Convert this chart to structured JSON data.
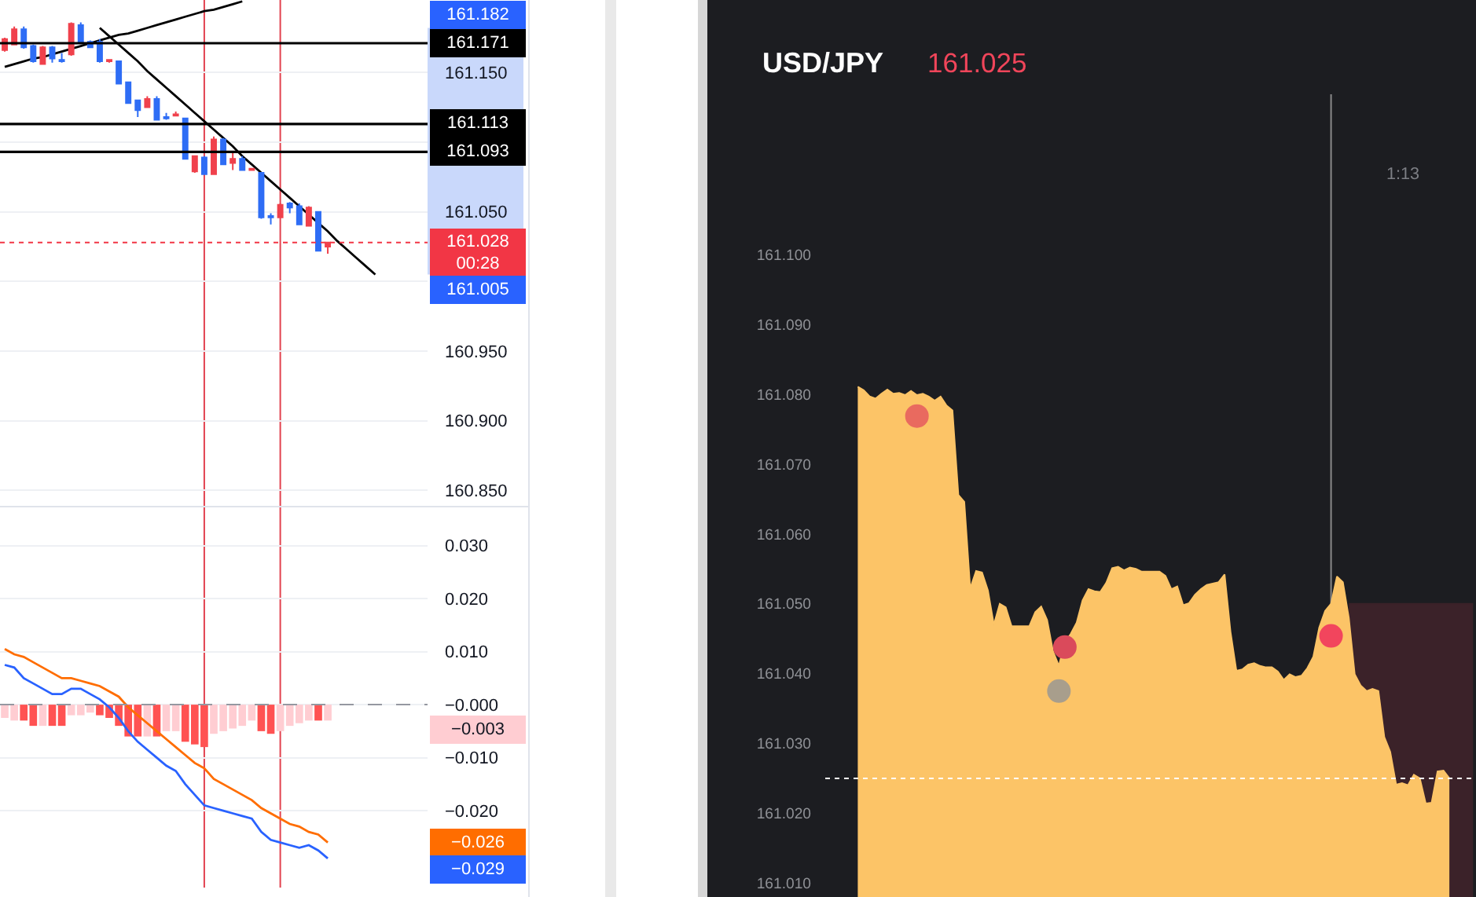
{
  "chart_data": [
    {
      "type": "candlestick",
      "categories": [
        null,
        null,
        null,
        null,
        null,
        null,
        null,
        null,
        null,
        null,
        null,
        null,
        null,
        null,
        null,
        null,
        null,
        null,
        null,
        null,
        null,
        null,
        null,
        null,
        null,
        null,
        null,
        null,
        null,
        null,
        null,
        null,
        null,
        null,
        null,
        null,
        null,
        null,
        null,
        null,
        null,
        null,
        null,
        null,
        null
      ],
      "ohlc": [
        [
          161.166,
          161.175,
          161.165,
          161.174
        ],
        [
          161.17,
          161.183,
          161.17,
          161.181
        ],
        [
          161.181,
          161.183,
          161.167,
          161.168
        ],
        [
          161.169,
          161.17,
          161.157,
          161.158
        ],
        [
          161.156,
          161.169,
          161.156,
          161.168
        ],
        [
          161.168,
          161.169,
          161.157,
          161.16
        ],
        [
          161.159,
          161.164,
          161.157,
          161.158
        ],
        [
          161.163,
          161.186,
          161.162,
          161.185
        ],
        [
          161.184,
          161.186,
          161.172,
          161.172
        ],
        [
          161.172,
          161.173,
          161.168,
          161.168
        ],
        [
          161.172,
          161.174,
          161.157,
          161.158
        ],
        [
          161.158,
          161.159,
          161.157,
          161.159
        ],
        [
          161.158,
          161.158,
          161.142,
          161.142
        ],
        [
          161.143,
          161.143,
          161.128,
          161.128
        ],
        [
          161.13,
          161.13,
          161.118,
          161.123
        ],
        [
          161.125,
          161.133,
          161.125,
          161.131
        ],
        [
          161.131,
          161.133,
          161.116,
          161.116
        ],
        [
          161.118,
          161.121,
          161.116,
          161.117
        ],
        [
          161.119,
          161.122,
          161.119,
          161.12
        ],
        [
          161.117,
          161.117,
          161.088,
          161.088
        ],
        [
          161.079,
          161.09,
          161.078,
          161.09
        ],
        [
          161.089,
          161.09,
          161.077,
          161.077
        ],
        [
          161.077,
          161.104,
          161.077,
          161.102
        ],
        [
          161.102,
          161.103,
          161.084,
          161.084
        ],
        [
          161.085,
          161.093,
          161.08,
          161.088
        ],
        [
          161.088,
          161.09,
          161.08,
          161.08
        ],
        [
          161.08,
          161.081,
          161.08,
          161.081
        ],
        [
          161.078,
          161.078,
          161.045,
          161.046
        ],
        [
          161.047,
          161.049,
          161.041,
          161.046
        ],
        [
          161.046,
          161.056,
          161.046,
          161.055
        ],
        [
          161.056,
          161.057,
          161.049,
          161.053
        ],
        [
          161.054,
          161.056,
          161.041,
          161.041
        ],
        [
          161.04,
          161.054,
          161.04,
          161.053
        ],
        [
          161.05,
          161.05,
          161.022,
          161.022
        ],
        [
          161.025,
          161.028,
          161.02,
          161.028
        ],
        null,
        null,
        null,
        null,
        null,
        null,
        null,
        null,
        null,
        null
      ],
      "colors": [
        "#f0414c",
        "#f0414c",
        "#2e6df5",
        "#2e6df5",
        "#f0414c",
        "#2e6df5",
        "#2e6df5",
        "#f0414c",
        "#2e6df5",
        "#2e6df5",
        "#2e6df5",
        "#f0414c",
        "#2e6df5",
        "#2e6df5",
        "#2e6df5",
        "#f0414c",
        "#2e6df5",
        "#2e6df5",
        "#f0414c",
        "#2e6df5",
        "#f0414c",
        "#2e6df5",
        "#f0414c",
        "#2e6df5",
        "#f0414c",
        "#2e6df5",
        "#f0414c",
        "#2e6df5",
        "#2e6df5",
        "#f0414c",
        "#2e6df5",
        "#2e6df5",
        "#f0414c",
        "#2e6df5",
        "#f0414c",
        null,
        null,
        null,
        null,
        null,
        null,
        null,
        null,
        null,
        null
      ],
      "series": [
        {
          "type": "line",
          "color": "#000000",
          "values": [
            161.154,
            161.156,
            161.158,
            161.16,
            161.161,
            161.163,
            161.165,
            161.167,
            161.169,
            161.171,
            161.173,
            161.175,
            161.177,
            161.178,
            161.18,
            161.182,
            161.184,
            161.186,
            161.188,
            161.19,
            161.192,
            161.194,
            161.195,
            161.197,
            161.199,
            161.201,
            null,
            null,
            null,
            null,
            null,
            null,
            null,
            null,
            null,
            null,
            null,
            null,
            null,
            null,
            null,
            null,
            null,
            null,
            null
          ]
        },
        {
          "type": "line",
          "color": "#000000",
          "values": [
            null,
            null,
            null,
            null,
            null,
            null,
            null,
            null,
            null,
            null,
            161.182,
            161.176,
            161.17,
            161.164,
            161.158,
            161.151,
            161.145,
            161.139,
            161.133,
            161.127,
            161.121,
            161.115,
            161.109,
            161.103,
            161.097,
            161.09,
            161.084,
            161.078,
            161.072,
            161.066,
            161.06,
            161.054,
            161.048,
            161.042,
            161.036,
            161.029,
            161.023,
            161.017,
            161.011,
            161.005,
            null,
            null,
            null,
            null,
            null
          ]
        }
      ],
      "ylim": [
        160.839,
        161.202
      ],
      "yticks": [
        {
          "value": 161.15,
          "label": "161.150"
        },
        {
          "value": 161.1,
          "label": null
        },
        {
          "value": 161.05,
          "label": "161.050"
        },
        {
          "value": 161.0,
          "label": null
        },
        {
          "value": 160.95,
          "label": "160.950"
        },
        {
          "value": 160.9,
          "label": "160.900"
        },
        {
          "value": 160.85,
          "label": "160.850"
        }
      ],
      "ref_lines": [
        {
          "axis": "y",
          "value": 161.171,
          "label": "161.171",
          "color": "#000000"
        },
        {
          "axis": "y",
          "value": 161.113,
          "label": "161.113",
          "color": "#000000"
        },
        {
          "axis": "y",
          "value": 161.093,
          "label": "161.093",
          "color": "#000000"
        },
        {
          "axis": "y",
          "value": 161.028,
          "label": "161.028\n00:28",
          "color": "#f23645",
          "line_style": "dotted"
        }
      ],
      "annotations": [
        "161.182",
        "161.005"
      ],
      "grid": "y",
      "tick_labels": "y"
    },
    {
      "type": "bar",
      "categories": [
        null,
        null,
        null,
        null,
        null,
        null,
        null,
        null,
        null,
        null,
        null,
        null,
        null,
        null,
        null,
        null,
        null,
        null,
        null,
        null,
        null,
        null,
        null,
        null,
        null,
        null,
        null,
        null,
        null,
        null,
        null,
        null,
        null,
        null,
        null,
        null,
        null,
        null,
        null,
        null,
        null,
        null,
        null,
        null,
        null
      ],
      "series": [
        {
          "values": [
            -0.0025,
            -0.003,
            -0.003,
            -0.004,
            -0.004,
            -0.004,
            -0.004,
            -0.002,
            -0.002,
            -0.0015,
            -0.002,
            -0.0025,
            -0.004,
            -0.006,
            -0.006,
            -0.006,
            -0.006,
            -0.005,
            -0.005,
            -0.007,
            -0.0075,
            -0.008,
            -0.0055,
            -0.005,
            -0.0045,
            -0.004,
            -0.003,
            -0.005,
            -0.0055,
            -0.005,
            -0.004,
            -0.0035,
            -0.003,
            -0.003,
            -0.003,
            null,
            null,
            null,
            null,
            null,
            null,
            null,
            null,
            null,
            null
          ],
          "colors": [
            "#ffcdd2",
            "#ffcdd2",
            "#ff5252",
            "#ff5252",
            "#ffcdd2",
            "#ff5252",
            "#ff5252",
            "#ffcdd2",
            "#ffcdd2",
            "#ffcdd2",
            "#ff5252",
            "#ff5252",
            "#ff5252",
            "#ff5252",
            "#ff5252",
            "#ffcdd2",
            "#ff5252",
            "#ffcdd2",
            "#ffcdd2",
            "#ff5252",
            "#ff5252",
            "#ff5252",
            "#ffcdd2",
            "#ffcdd2",
            "#ffcdd2",
            "#ffcdd2",
            "#ffcdd2",
            "#ff5252",
            "#ff5252",
            "#ffcdd2",
            "#ffcdd2",
            "#ffcdd2",
            "#ffcdd2",
            "#ff5252",
            "#ffcdd2",
            null,
            null,
            null,
            null,
            null,
            null,
            null,
            null,
            null,
            null
          ]
        },
        {
          "type": "line",
          "color": "#ff6d00",
          "values": [
            0.0105,
            0.0095,
            0.009,
            0.008,
            0.007,
            0.006,
            0.005,
            0.005,
            0.0045,
            0.004,
            0.0035,
            0.0025,
            0.0015,
            -0.0005,
            -0.002,
            -0.0035,
            -0.005,
            -0.0065,
            -0.008,
            -0.0095,
            -0.011,
            -0.012,
            -0.014,
            -0.015,
            -0.016,
            -0.017,
            -0.018,
            -0.0195,
            -0.0205,
            -0.0215,
            -0.0225,
            -0.023,
            -0.024,
            -0.0245,
            -0.026,
            null,
            null,
            null,
            null,
            null,
            null,
            null,
            null,
            null,
            null
          ]
        },
        {
          "type": "line",
          "color": "#2962ff",
          "values": [
            0.0075,
            0.007,
            0.005,
            0.004,
            0.003,
            0.002,
            0.002,
            0.003,
            0.003,
            0.002,
            0.001,
            -0.0005,
            -0.0025,
            -0.005,
            -0.007,
            -0.0085,
            -0.01,
            -0.0115,
            -0.0125,
            -0.015,
            -0.017,
            -0.019,
            -0.0195,
            -0.02,
            -0.0205,
            -0.021,
            -0.0215,
            -0.024,
            -0.0255,
            -0.026,
            -0.0265,
            -0.027,
            -0.0265,
            -0.0275,
            -0.029,
            null,
            null,
            null,
            null,
            null,
            null,
            null,
            null,
            null,
            null
          ]
        }
      ],
      "ylim": [
        -0.0345,
        0.0372
      ],
      "yticks": [
        {
          "value": 0.03,
          "label": "0.030"
        },
        {
          "value": 0.02,
          "label": "0.020"
        },
        {
          "value": 0.01,
          "label": "0.010"
        },
        {
          "value": 0,
          "label": "−0.000"
        },
        {
          "value": -0.01,
          "label": "−0.010"
        },
        {
          "value": -0.02,
          "label": "−0.020"
        }
      ],
      "ref_lines": [
        {
          "axis": "y",
          "value": 0,
          "color": "#9598a1",
          "line_style": "dashed"
        }
      ],
      "annotations": [
        "−0.003",
        "−0.026",
        "−0.029"
      ],
      "grid": "y",
      "tick_labels": "y"
    },
    {
      "type": "area",
      "title": "USD/JPY",
      "subtitle": "161.025",
      "categories": [
        null,
        null,
        null,
        null,
        null,
        null,
        null,
        null,
        null,
        null,
        null,
        null,
        null,
        null,
        null,
        null,
        null,
        null,
        null,
        null,
        null,
        null,
        null,
        null,
        null,
        null,
        null,
        null,
        null,
        null,
        null,
        null,
        null,
        null,
        null,
        null,
        null,
        null,
        null,
        null,
        null,
        null,
        null,
        null,
        null,
        null,
        null,
        null,
        null,
        null,
        null,
        null,
        null,
        null,
        null,
        null,
        null,
        null,
        null,
        null,
        null,
        null,
        null,
        null,
        null,
        null,
        null,
        null,
        null,
        null,
        null,
        null,
        null,
        null,
        null,
        null,
        null,
        null,
        null,
        null,
        null,
        null,
        null,
        null,
        null,
        null,
        null,
        null,
        null,
        null,
        null,
        null,
        null,
        null,
        null,
        null,
        null,
        null,
        null,
        null,
        null,
        null,
        null,
        null,
        null,
        null,
        null,
        null,
        null,
        null
      ],
      "series": [
        {
          "color": "#3b2229",
          "values": [
            null,
            null,
            null,
            null,
            null,
            null,
            null,
            null,
            null,
            null,
            null,
            null,
            null,
            null,
            null,
            null,
            null,
            null,
            null,
            null,
            null,
            null,
            null,
            null,
            null,
            null,
            null,
            null,
            null,
            null,
            null,
            null,
            null,
            null,
            null,
            null,
            null,
            null,
            null,
            null,
            null,
            null,
            null,
            null,
            null,
            null,
            null,
            null,
            null,
            null,
            null,
            null,
            null,
            null,
            null,
            null,
            null,
            null,
            null,
            null,
            null,
            null,
            null,
            null,
            null,
            null,
            null,
            null,
            null,
            null,
            null,
            null,
            null,
            null,
            null,
            null,
            null,
            null,
            null,
            null,
            null,
            null,
            null,
            null,
            null,
            null,
            null,
            null,
            161.05,
            161.05,
            161.05,
            161.05,
            161.05,
            161.05,
            161.05,
            161.05,
            161.05,
            161.05,
            161.05,
            161.05,
            161.05,
            161.05,
            161.05,
            161.05,
            161.05,
            161.05,
            161.05,
            161.05,
            161.05,
            161.05
          ]
        },
        {
          "color": "#fcc467",
          "values": [
            null,
            null,
            null,
            null,
            null,
            161.0811,
            161.0806,
            161.0797,
            161.0794,
            161.0801,
            161.0807,
            161.0801,
            161.0802,
            161.0799,
            161.0805,
            161.0799,
            161.0801,
            161.0797,
            161.0791,
            161.0797,
            161.0784,
            161.0777,
            161.0656,
            161.0646,
            161.0522,
            161.0547,
            161.0545,
            161.0519,
            161.047,
            161.05,
            161.0495,
            161.0468,
            161.0468,
            161.0468,
            161.0468,
            161.0488,
            161.0496,
            161.0477,
            161.0432,
            161.0411,
            161.0445,
            161.0457,
            161.0473,
            161.0505,
            161.0521,
            161.0518,
            161.0517,
            161.053,
            161.0551,
            161.0553,
            161.0548,
            161.0552,
            161.055,
            161.0546,
            161.0546,
            161.0546,
            161.0546,
            161.054,
            161.0521,
            161.0525,
            161.0498,
            161.0501,
            161.0513,
            161.0521,
            161.0527,
            161.0529,
            161.0531,
            161.0542,
            161.046,
            161.0404,
            161.0406,
            161.0413,
            161.0415,
            161.0411,
            161.0409,
            161.0409,
            161.0403,
            161.0391,
            161.0399,
            161.0395,
            161.0397,
            161.0408,
            161.0424,
            161.0466,
            161.049,
            161.05,
            161.0539,
            161.0531,
            161.048,
            161.0399,
            161.0383,
            161.0375,
            161.0378,
            161.0375,
            161.0309,
            161.0288,
            161.0241,
            161.0243,
            161.024,
            161.0255,
            161.025,
            161.0214,
            161.0215,
            161.026,
            161.0261,
            161.025,
            null,
            null,
            null,
            null
          ]
        },
        {
          "type": "scatter",
          "values": [
            null,
            null,
            null,
            null,
            null,
            null,
            null,
            null,
            null,
            null,
            null,
            null,
            null,
            null,
            null,
            161.0769,
            null,
            null,
            null,
            null,
            null,
            null,
            null,
            null,
            null,
            null,
            null,
            null,
            null,
            null,
            null,
            null,
            null,
            null,
            null,
            null,
            null,
            null,
            null,
            161.0375,
            161.0438,
            null,
            null,
            null,
            null,
            null,
            null,
            null,
            null,
            null,
            null,
            null,
            null,
            null,
            null,
            null,
            null,
            null,
            null,
            null,
            null,
            null,
            null,
            null,
            null,
            null,
            null,
            null,
            null,
            null,
            null,
            null,
            null,
            null,
            null,
            null,
            null,
            null,
            null,
            null,
            null,
            null,
            null,
            null,
            null,
            161.0454,
            null,
            null,
            null,
            null,
            null,
            null,
            null,
            null,
            null,
            null,
            null,
            null,
            null,
            null,
            null,
            null,
            null,
            null,
            null,
            null,
            null,
            null,
            null,
            null
          ],
          "colors": [
            null,
            null,
            null,
            null,
            null,
            null,
            null,
            null,
            null,
            null,
            null,
            null,
            null,
            null,
            null,
            "#e96a5f",
            null,
            null,
            null,
            null,
            null,
            null,
            null,
            null,
            null,
            null,
            null,
            null,
            null,
            null,
            null,
            null,
            null,
            null,
            null,
            null,
            null,
            null,
            null,
            "#a89e8c",
            "#da4a5b",
            null,
            null,
            null,
            null,
            null,
            null,
            null,
            null,
            null,
            null,
            null,
            null,
            null,
            null,
            null,
            null,
            null,
            null,
            null,
            null,
            null,
            null,
            null,
            null,
            null,
            null,
            null,
            null,
            null,
            null,
            null,
            null,
            null,
            null,
            null,
            null,
            null,
            null,
            null,
            null,
            null,
            null,
            null,
            null,
            "#f2455d",
            null,
            null,
            null,
            null,
            null,
            null,
            null,
            null,
            null,
            null,
            null,
            null,
            null,
            null,
            null,
            null,
            null,
            null,
            null,
            null,
            null,
            null,
            null,
            null
          ]
        }
      ],
      "ylim": [
        161.008,
        161.123
      ],
      "yticks": [
        {
          "value": 161.1,
          "label": "161.100"
        },
        {
          "value": 161.09,
          "label": "161.090"
        },
        {
          "value": 161.08,
          "label": "161.080"
        },
        {
          "value": 161.07,
          "label": "161.070"
        },
        {
          "value": 161.06,
          "label": "161.060"
        },
        {
          "value": 161.05,
          "label": "161.050"
        },
        {
          "value": 161.04,
          "label": "161.040"
        },
        {
          "value": 161.03,
          "label": "161.030"
        },
        {
          "value": 161.02,
          "label": "161.020"
        },
        {
          "value": 161.01,
          "label": "161.010"
        }
      ],
      "ref_lines": [
        {
          "axis": "y",
          "value": 161.025,
          "color": "#ffffff",
          "line_style": "dotted"
        }
      ],
      "annotations": [
        "1:13"
      ],
      "tick_labels": "y"
    }
  ]
}
